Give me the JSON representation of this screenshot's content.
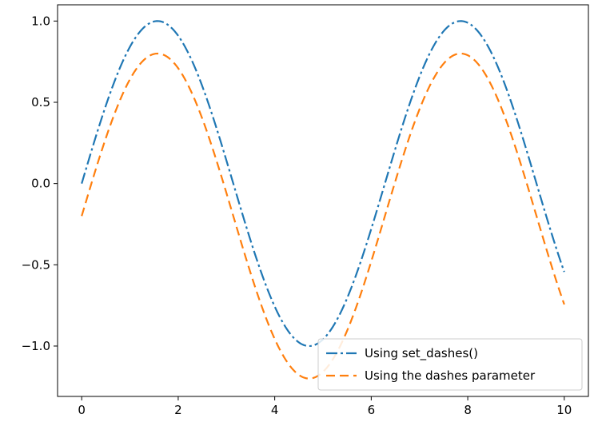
{
  "chart_data": {
    "type": "line",
    "title": "",
    "xlabel": "",
    "ylabel": "",
    "xlim": [
      -0.5,
      10.5
    ],
    "ylim": [
      -1.31,
      1.1
    ],
    "xticks": [
      0,
      2,
      4,
      6,
      8,
      10
    ],
    "xtick_labels": [
      "0",
      "2",
      "4",
      "6",
      "8",
      "10"
    ],
    "yticks": [
      1.0,
      0.5,
      0.0,
      -0.5,
      -1.0
    ],
    "ytick_labels": [
      "1.0",
      "0.5",
      "0.0",
      "−0.5",
      "−1.0"
    ],
    "grid": false,
    "legend_position": "lower-right",
    "x_range": [
      0,
      10
    ],
    "series": [
      {
        "name": "Using set_dashes()",
        "function": "sin(x)",
        "x": [
          0,
          0.5,
          1,
          1.5708,
          2,
          2.5,
          3,
          3.5,
          4,
          4.7124,
          5,
          5.5,
          6,
          6.5,
          7,
          7.854,
          8.5,
          9,
          9.5,
          10
        ],
        "values": [
          0,
          0.479,
          0.841,
          1.0,
          0.909,
          0.598,
          0.141,
          -0.351,
          -0.757,
          -1.0,
          -0.959,
          -0.706,
          -0.279,
          0.215,
          0.657,
          1.0,
          0.798,
          0.412,
          -0.075,
          -0.544
        ],
        "color": "#1f77b4",
        "linestyle": "dash-dot"
      },
      {
        "name": "Using the dashes parameter",
        "function": "sin(x) - 0.2",
        "x": [
          0,
          0.5,
          1,
          1.5708,
          2,
          2.5,
          3,
          3.5,
          4,
          4.7124,
          5,
          5.5,
          6,
          6.5,
          7,
          7.854,
          8.5,
          9,
          9.5,
          10
        ],
        "values": [
          -0.2,
          0.279,
          0.641,
          0.8,
          0.709,
          0.398,
          -0.059,
          -0.551,
          -0.957,
          -1.2,
          -1.159,
          -0.906,
          -0.479,
          0.015,
          0.457,
          0.8,
          0.598,
          0.212,
          -0.275,
          -0.744
        ],
        "color": "#ff7f0e",
        "linestyle": "dashed"
      }
    ]
  }
}
